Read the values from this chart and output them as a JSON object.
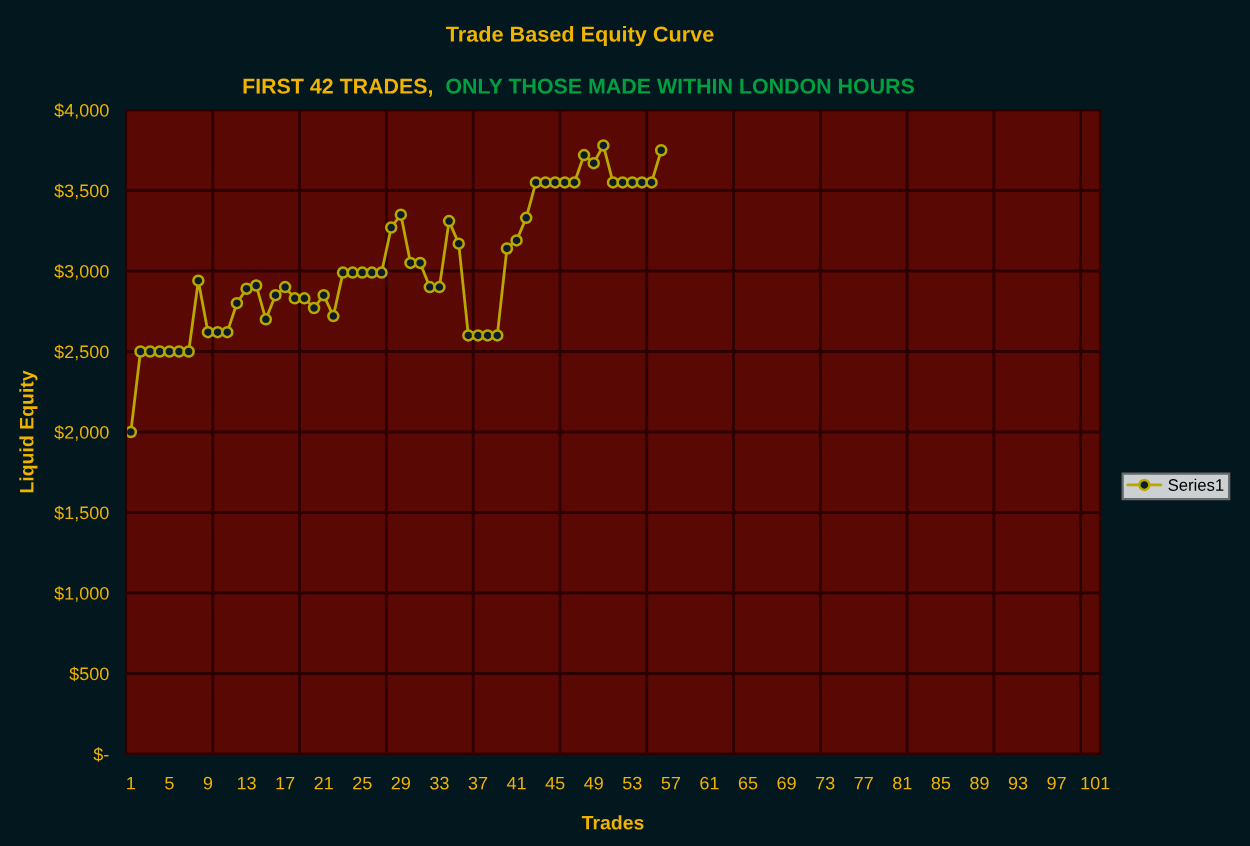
{
  "chart_data": {
    "type": "line",
    "title": "Trade Based Equity Curve",
    "subtitle": "FIRST 42 TRADES,",
    "annotations": [
      "ONLY THOSE MADE WITHIN LONDON HOURS"
    ],
    "xlabel": "Trades",
    "ylabel": "Liquid Equity",
    "categories": [
      "1",
      null,
      null,
      null,
      "5",
      null,
      null,
      null,
      "9",
      null,
      null,
      null,
      "13",
      null,
      null,
      null,
      "17",
      null,
      null,
      null,
      "21",
      null,
      null,
      null,
      "25",
      null,
      null,
      null,
      "29",
      null,
      null,
      null,
      "33",
      null,
      null,
      null,
      "37",
      null,
      null,
      null,
      "41",
      null,
      null,
      null,
      "45",
      null,
      null,
      null,
      "49",
      null,
      null,
      null,
      "53",
      null,
      null,
      null,
      "57",
      null,
      null,
      null,
      "61",
      null,
      null,
      null,
      "65",
      null,
      null,
      null,
      "69",
      null,
      null,
      null,
      "73",
      null,
      null,
      null,
      "77",
      null,
      null,
      null,
      "81",
      null,
      null,
      null,
      "85",
      null,
      null,
      null,
      "89",
      null,
      null,
      null,
      "93",
      null,
      null,
      null,
      "97",
      null,
      null,
      null,
      "101"
    ],
    "series": [
      {
        "name": "Series1",
        "color": "#b8a800",
        "values": [
          2000,
          2500,
          2500,
          2500,
          2500,
          2500,
          2500,
          2940,
          2620,
          2620,
          2620,
          2800,
          2890,
          2910,
          2700,
          2850,
          2900,
          2830,
          2830,
          2770,
          2850,
          2720,
          2990,
          2990,
          2990,
          2990,
          2990,
          3270,
          3350,
          3050,
          3050,
          2900,
          2900,
          3310,
          3170,
          2600,
          2600,
          2600,
          2600,
          3140,
          3190,
          3330,
          3550,
          3550,
          3550,
          3550,
          3550,
          3720,
          3670,
          3780,
          3550,
          3550,
          3550,
          3550,
          3550,
          3750,
          null,
          null,
          null,
          null,
          null,
          null,
          null,
          null,
          null,
          null,
          null,
          null,
          null,
          null,
          null,
          null,
          null,
          null,
          null,
          null,
          null,
          null,
          null,
          null,
          null,
          null,
          null,
          null,
          null,
          null,
          null,
          null,
          null,
          null,
          null,
          null,
          null,
          null,
          null,
          null,
          null,
          null,
          null,
          null,
          null
        ]
      }
    ],
    "ylim": [
      0,
      4000
    ],
    "yticks": [
      {
        "value": 0,
        "label": "$-"
      },
      {
        "value": 500,
        "label": "$500"
      },
      {
        "value": 1000,
        "label": "$1,000"
      },
      {
        "value": 1500,
        "label": "$1,500"
      },
      {
        "value": 2000,
        "label": "$2,000"
      },
      {
        "value": 2500,
        "label": "$2,500"
      },
      {
        "value": 3000,
        "label": "$3,000"
      },
      {
        "value": 3500,
        "label": "$3,500"
      },
      {
        "value": 4000,
        "label": "$4,000"
      }
    ],
    "grid": true,
    "legend": "right",
    "marker": "circle",
    "line_style": "solid"
  }
}
